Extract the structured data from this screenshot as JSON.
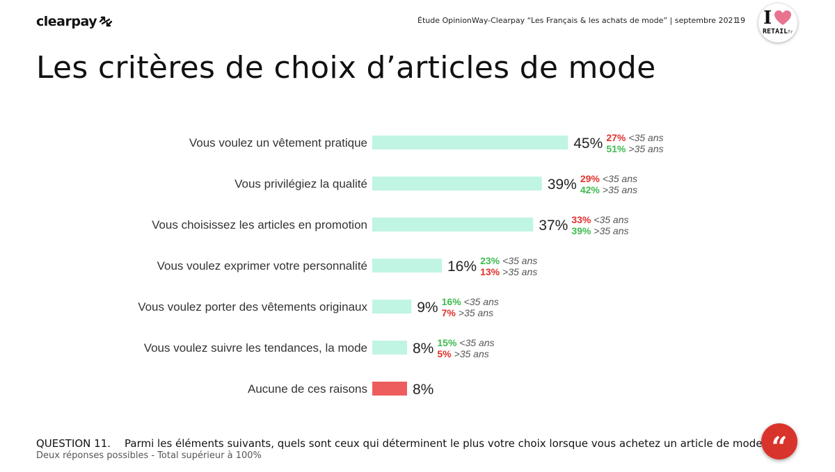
{
  "header": {
    "brand": "clearpay",
    "study": "Étude OpinionWay-Clearpay “Les Français & les achats de mode” | septembre 2021",
    "page_number": "19",
    "badge_letter": "I",
    "badge_word": "RETAIL",
    "badge_suffix": "fr"
  },
  "title": "Les critères de choix d’articles de mode",
  "footer": {
    "question_label": "QUESTION 11.",
    "question_text": "Parmi les éléments suivants, quels sont ceux qui déterminent le plus votre choix lorsque vous achetez un article de mode ?",
    "note": "Deux réponses possibles - Total supérieur à 100%",
    "quote_icon_glyph": "“"
  },
  "colors": {
    "bar": "#bff5e2",
    "bar_none": "#ee5d5d",
    "green": "#3dbb4f",
    "red": "#e0312d",
    "age_label": "#555555",
    "value_label": "#222222"
  },
  "chart_data": {
    "type": "bar",
    "orientation": "horizontal",
    "title": "Les critères de choix d’articles de mode",
    "xlim": [
      0,
      50
    ],
    "value_suffix": "%",
    "categories": [
      "Vous voulez un vêtement pratique",
      "Vous privilégiez la qualité",
      "Vous choisissez les articles en promotion",
      "Vous voulez exprimer votre personnalité",
      "Vous voulez porter des vêtements originaux",
      "Vous voulez suivre les tendances, la mode",
      "Aucune de ces raisons"
    ],
    "values": [
      45,
      39,
      37,
      16,
      9,
      8,
      8
    ],
    "highlight": [
      false,
      false,
      false,
      false,
      false,
      false,
      true
    ],
    "breakdown": [
      [
        {
          "value": "27%",
          "label": "<35 ans",
          "color": "red"
        },
        {
          "value": "51%",
          "label": ">35 ans",
          "color": "green"
        }
      ],
      [
        {
          "value": "29%",
          "label": "<35 ans",
          "color": "red"
        },
        {
          "value": "42%",
          "label": ">35 ans",
          "color": "green"
        }
      ],
      [
        {
          "value": "33%",
          "label": "<35 ans",
          "color": "red"
        },
        {
          "value": "39%",
          "label": ">35 ans",
          "color": "green"
        }
      ],
      [
        {
          "value": "23%",
          "label": "<35 ans",
          "color": "green"
        },
        {
          "value": "13%",
          "label": ">35 ans",
          "color": "red"
        }
      ],
      [
        {
          "value": "16%",
          "label": "<35 ans",
          "color": "green"
        },
        {
          "value": "7%",
          "label": ">35 ans",
          "color": "red"
        }
      ],
      [
        {
          "value": "15%",
          "label": "<35 ans",
          "color": "green"
        },
        {
          "value": "5%",
          "label": ">35 ans",
          "color": "red"
        }
      ],
      []
    ]
  }
}
